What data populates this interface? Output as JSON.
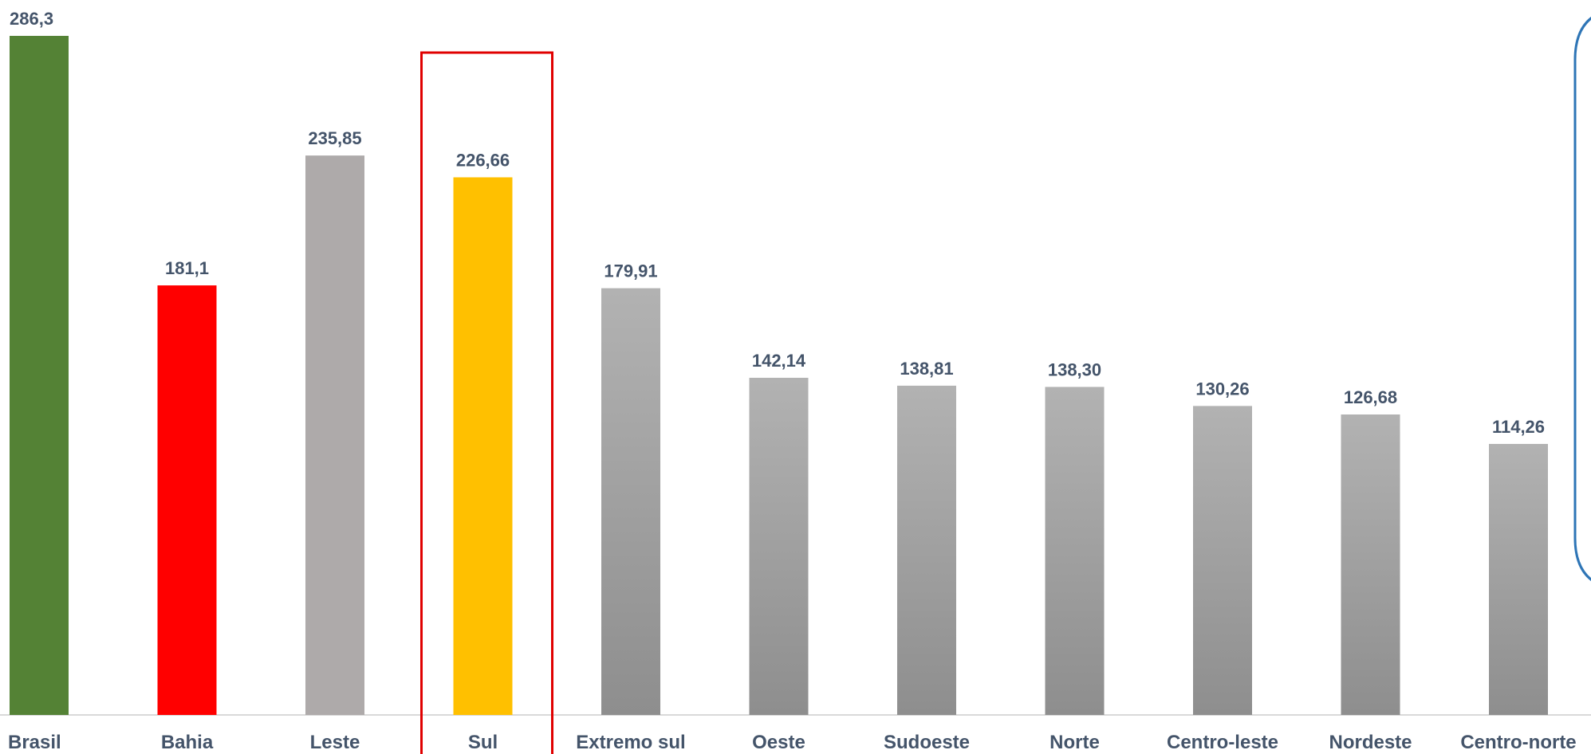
{
  "chart_data": {
    "type": "bar",
    "categories": [
      "Brasil",
      "Bahia",
      "Leste",
      "Sul",
      "Extremo sul",
      "Oeste",
      "Sudoeste",
      "Norte",
      "Centro-leste",
      "Nordeste",
      "Centro-norte"
    ],
    "values": [
      286.3,
      181.1,
      235.85,
      226.66,
      179.91,
      142.14,
      138.81,
      138.3,
      130.26,
      126.68,
      114.26
    ],
    "value_labels": [
      "286,3",
      "181,1",
      "235,85",
      "226,66",
      "179,91",
      "142,14",
      "138,81",
      "138,30",
      "130,26",
      "126,68",
      "114,26"
    ],
    "title": "",
    "xlabel": "",
    "ylabel": "",
    "ylim": [
      0,
      286.3
    ],
    "grid": false,
    "highlighted_category": "Sul",
    "colors": {
      "Brasil": "#548235",
      "Bahia": "#ff0000",
      "Leste": "#aeaaaa",
      "Sul": "#ffc000",
      "default": "#9e9e9e",
      "highlight_box": "#e00000",
      "label_text": "#44546a",
      "side_panel_border": "#2e75b6"
    }
  }
}
